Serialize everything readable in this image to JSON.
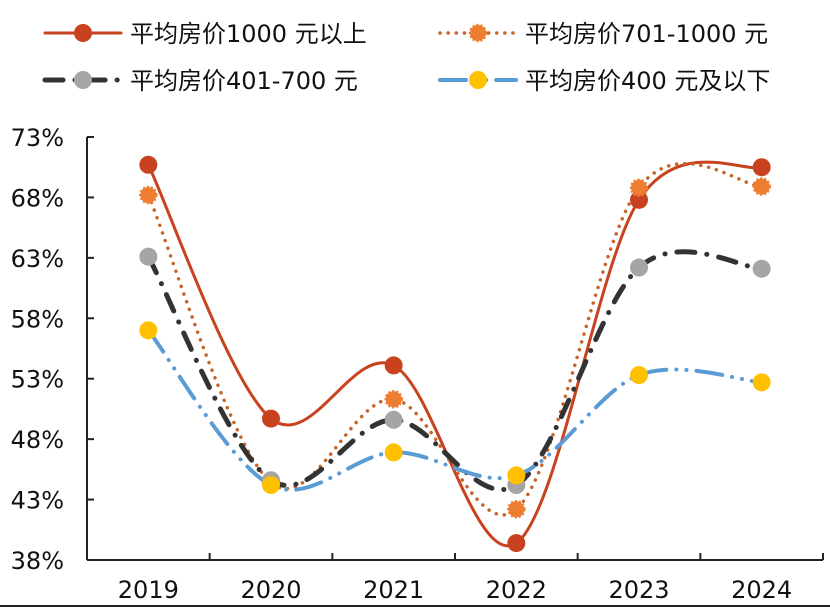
{
  "chart_data": {
    "type": "line",
    "title": "",
    "xlabel": "",
    "ylabel": "",
    "categories": [
      "2019",
      "2020",
      "2021",
      "2022",
      "2023",
      "2024"
    ],
    "ylim": [
      38,
      73
    ],
    "yticks": [
      38,
      43,
      48,
      53,
      58,
      63,
      68,
      73
    ],
    "ytick_labels": [
      "38%",
      "43%",
      "48%",
      "53%",
      "58%",
      "63%",
      "68%",
      "73%"
    ],
    "grid": false,
    "smooth": true,
    "legend_position": "top",
    "series": [
      {
        "name": "平均房价1000 元以上",
        "color": "#C9421F",
        "line_style": "solid",
        "marker": "circle",
        "marker_color": "#C9421F",
        "values": [
          70.7,
          49.7,
          54.1,
          39.4,
          67.8,
          70.5
        ]
      },
      {
        "name": "平均房价701-1000 元",
        "color": "#C5652A",
        "line_style": "dotted",
        "marker": "circle-dashed",
        "marker_color": "#ED7D31",
        "values": [
          68.2,
          44.4,
          51.3,
          42.2,
          68.8,
          68.9
        ]
      },
      {
        "name": "平均房价401-700 元",
        "color": "#333333",
        "line_style": "dash-dot",
        "marker": "circle",
        "marker_color": "#A5A5A5",
        "values": [
          63.1,
          44.6,
          49.6,
          44.2,
          62.2,
          62.1
        ]
      },
      {
        "name": "平均房价400 元及以下",
        "color": "#5B9BD5",
        "line_style": "long-dash-dot-dot",
        "marker": "circle",
        "marker_color": "#FFC000",
        "values": [
          57.0,
          44.2,
          46.9,
          45.0,
          53.3,
          52.7
        ]
      }
    ]
  }
}
